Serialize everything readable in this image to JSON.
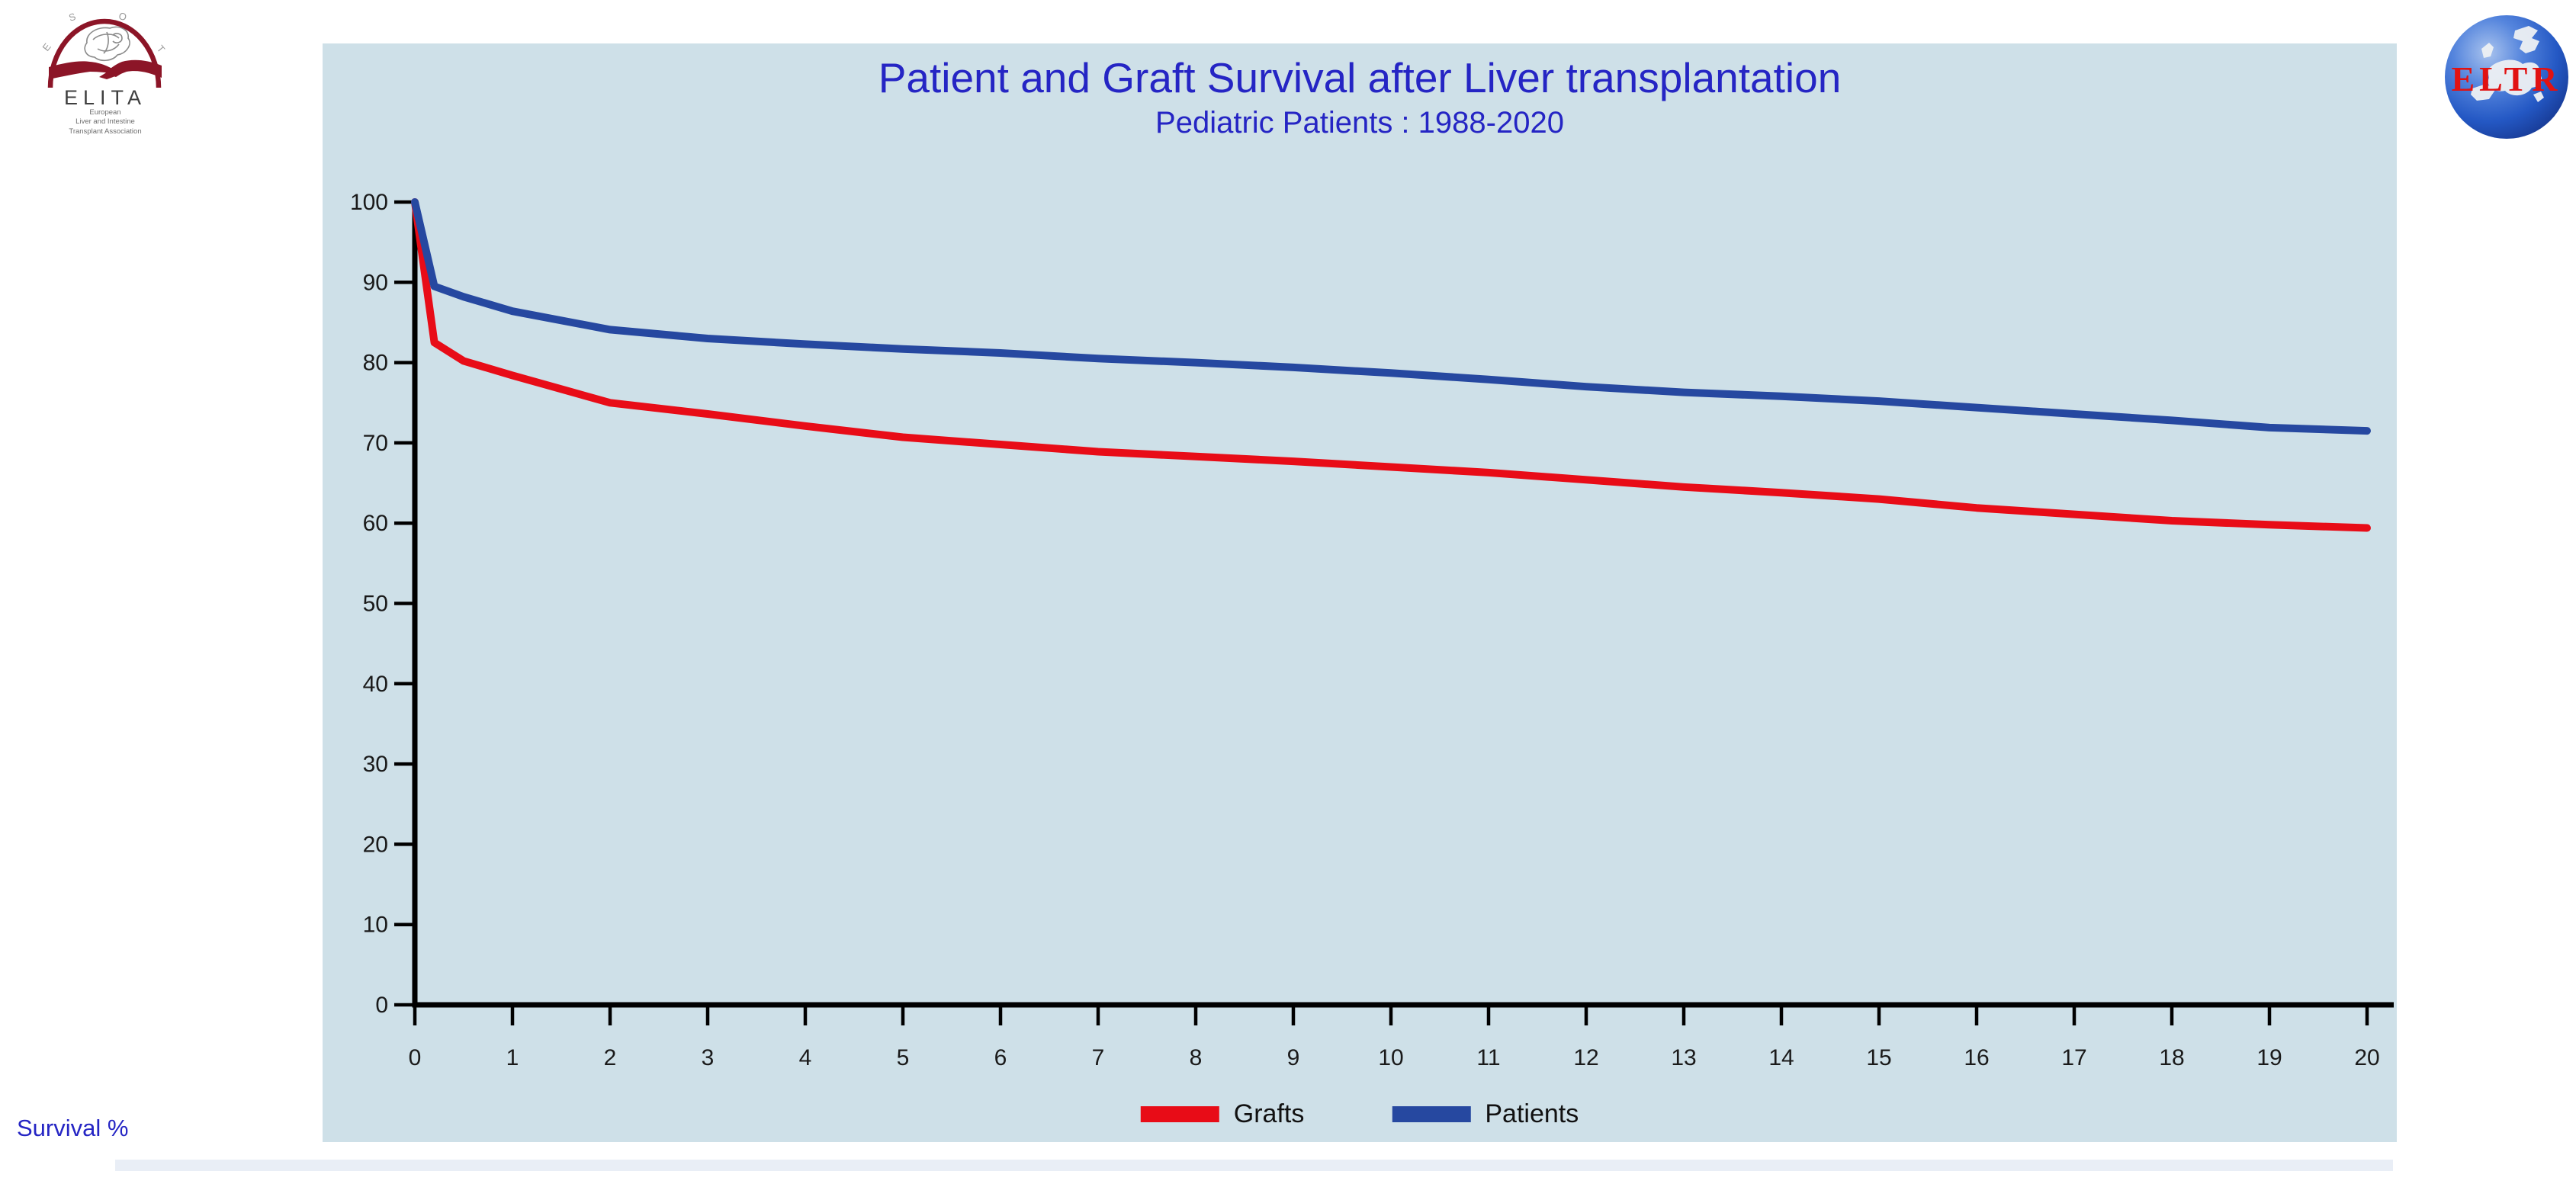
{
  "colors": {
    "chart_bg": "#cee0e8",
    "title_blue": "#2525c4",
    "axis_black": "#000000",
    "grafts_red": "#e80c17",
    "patients_blue": "#2648a0",
    "footer_band": "#e9eef6",
    "elita_red": "#8c1527",
    "eltr_red": "#e11212"
  },
  "logos": {
    "elita": {
      "acronym": "ELITA",
      "society_letters": [
        "E",
        "S",
        "O",
        "T"
      ],
      "sublines": [
        "European",
        "Liver and Intestine",
        "Transplant Association"
      ]
    },
    "eltr": {
      "acronym": "ELTR"
    }
  },
  "chart_data": {
    "type": "line",
    "title": "Patient and Graft Survival after Liver transplantation",
    "subtitle": "Pediatric Patients : 1988-2020",
    "ylabel": "Survival %",
    "xlim": [
      0,
      20
    ],
    "ylim": [
      0,
      100
    ],
    "xticks": [
      0,
      1,
      2,
      3,
      4,
      5,
      6,
      7,
      8,
      9,
      10,
      11,
      12,
      13,
      14,
      15,
      16,
      17,
      18,
      19,
      20
    ],
    "yticks": [
      0,
      10,
      20,
      30,
      40,
      50,
      60,
      70,
      80,
      90,
      100
    ],
    "grid": false,
    "legend_position": "bottom",
    "x": [
      0,
      0.2,
      0.5,
      1,
      2,
      3,
      4,
      5,
      6,
      7,
      8,
      9,
      10,
      11,
      12,
      13,
      14,
      15,
      16,
      17,
      18,
      19,
      20
    ],
    "series": [
      {
        "name": "Grafts",
        "color": "#e80c17",
        "values": [
          100,
          82.5,
          80.2,
          78.4,
          75.0,
          73.6,
          72.1,
          70.7,
          69.8,
          68.9,
          68.3,
          67.7,
          67.0,
          66.3,
          65.4,
          64.5,
          63.8,
          63.0,
          61.9,
          61.1,
          60.3,
          59.8,
          59.4
        ]
      },
      {
        "name": "Patients",
        "color": "#2648a0",
        "values": [
          100,
          89.5,
          88.2,
          86.4,
          84.1,
          83.0,
          82.3,
          81.7,
          81.2,
          80.5,
          80.0,
          79.4,
          78.7,
          77.9,
          77.0,
          76.3,
          75.8,
          75.2,
          74.4,
          73.6,
          72.8,
          71.9,
          71.5
        ]
      }
    ]
  }
}
